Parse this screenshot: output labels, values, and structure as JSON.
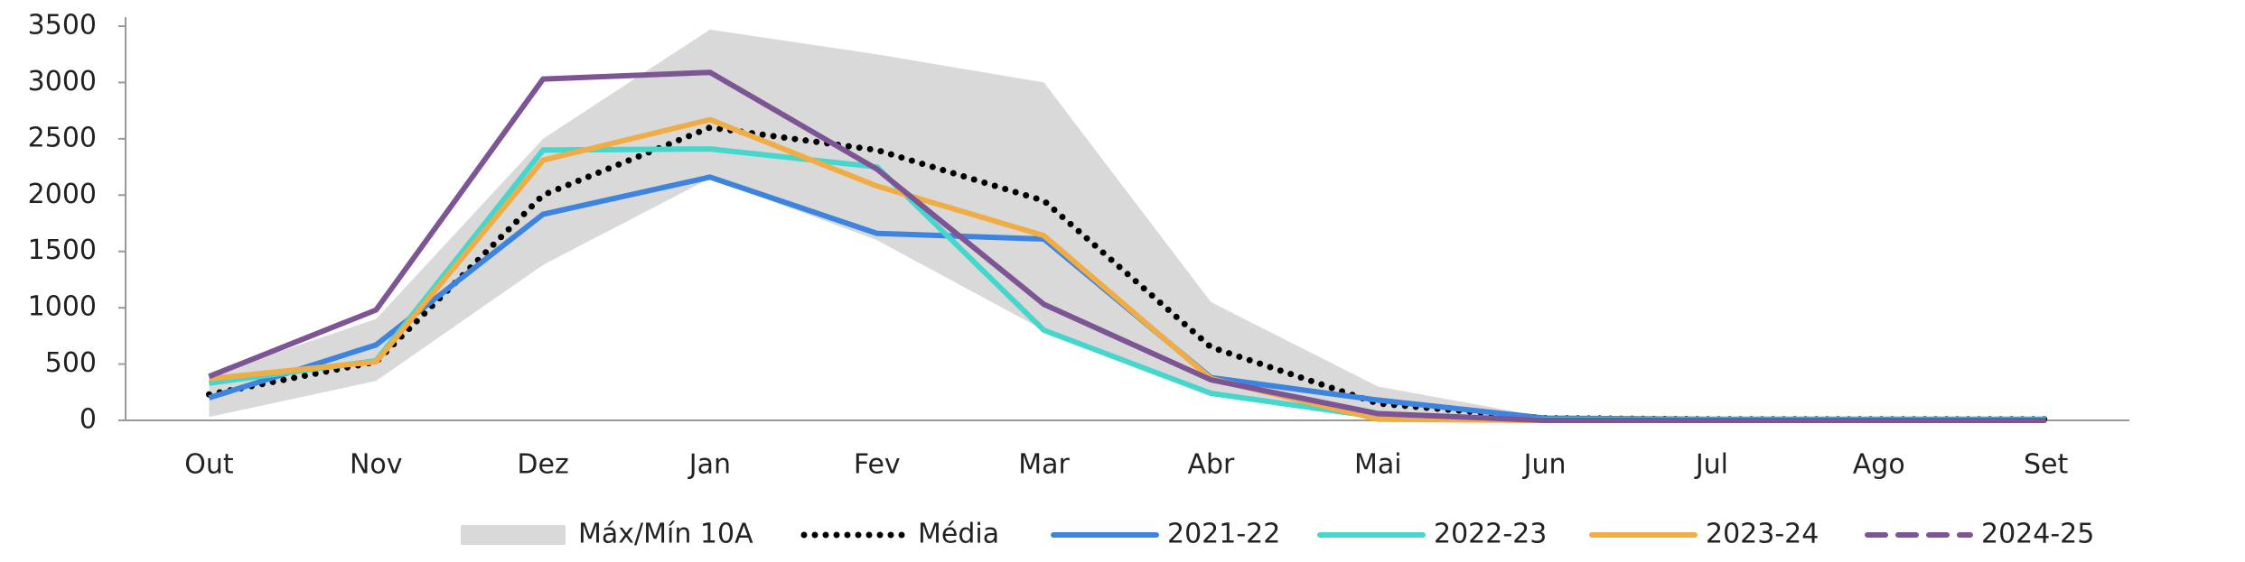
{
  "chart_data": {
    "type": "line",
    "categories": [
      "Out",
      "Nov",
      "Dez",
      "Jan",
      "Fev",
      "Mar",
      "Abr",
      "Mai",
      "Jun",
      "Jul",
      "Ago",
      "Set"
    ],
    "ylim": [
      0,
      3500
    ],
    "yticks": [
      0,
      500,
      1000,
      1500,
      2000,
      2500,
      3000,
      3500
    ],
    "legend": "bottom",
    "series": [
      {
        "name": "Máx/Mín 10A",
        "type": "band",
        "color": "#d9d9d9",
        "max": [
          400,
          900,
          2500,
          3470,
          3250,
          3000,
          1050,
          300,
          30,
          0,
          0,
          0
        ],
        "min": [
          30,
          350,
          1380,
          2150,
          1600,
          800,
          250,
          20,
          0,
          0,
          0,
          0
        ]
      },
      {
        "name": "Média",
        "color": "#000000",
        "dash": "dotted",
        "values": [
          230,
          520,
          2000,
          2600,
          2400,
          1950,
          650,
          150,
          20,
          10,
          10,
          10
        ]
      },
      {
        "name": "2021-22",
        "color": "#3c84e0",
        "dash": "solid",
        "values": [
          200,
          670,
          1830,
          2160,
          1660,
          1610,
          380,
          180,
          20,
          10,
          10,
          10
        ]
      },
      {
        "name": "2022-23",
        "color": "#45d6cc",
        "dash": "solid",
        "values": [
          330,
          530,
          2400,
          2410,
          2250,
          800,
          240,
          30,
          5,
          5,
          5,
          5
        ]
      },
      {
        "name": "2023-24",
        "color": "#f0ad45",
        "dash": "solid",
        "values": [
          370,
          520,
          2310,
          2670,
          2080,
          1640,
          370,
          10,
          0,
          0,
          0,
          0
        ]
      },
      {
        "name": "2024-25",
        "color": "#7d5594",
        "dash": "dashed",
        "values": [
          390,
          980,
          3030,
          3090,
          2230,
          1030,
          360,
          60,
          0,
          0,
          0,
          0
        ]
      }
    ]
  }
}
